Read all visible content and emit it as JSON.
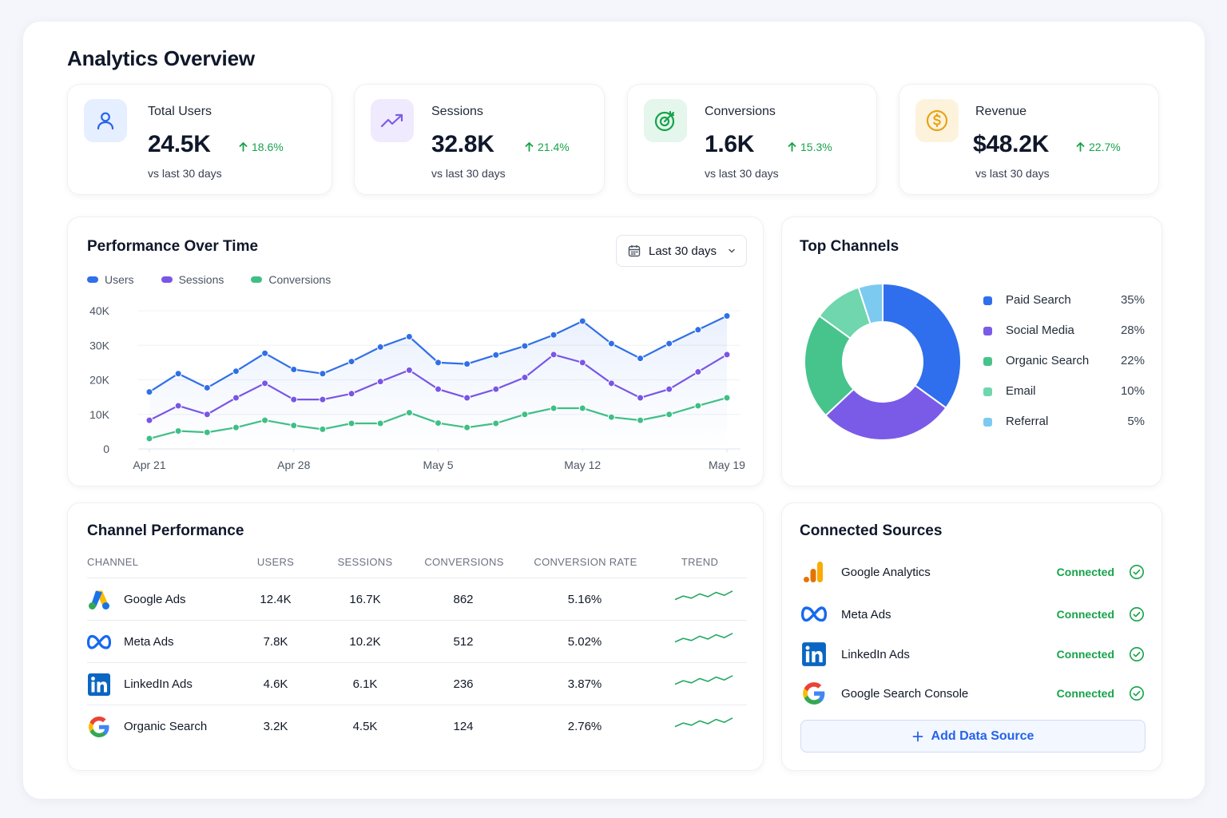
{
  "page": {
    "title": "Analytics Overview"
  },
  "kpis": [
    {
      "label": "Total Users",
      "value": "24.5K",
      "delta": "18.6%",
      "sub": "vs last 30 days",
      "icon": "user-icon",
      "color": "#2563eb",
      "bg": "#e6efff"
    },
    {
      "label": "Sessions",
      "value": "32.8K",
      "delta": "21.4%",
      "sub": "vs last 30 days",
      "icon": "trending-up-icon",
      "color": "#7c5ce6",
      "bg": "#efeafd"
    },
    {
      "label": "Conversions",
      "value": "1.6K",
      "delta": "15.3%",
      "sub": "vs last 30 days",
      "icon": "target-icon",
      "color": "#16a34a",
      "bg": "#e5f6ec"
    },
    {
      "label": "Revenue",
      "value": "$48.2K",
      "delta": "22.7%",
      "sub": "vs last 30 days",
      "icon": "dollar-coin-icon",
      "color": "#e8a317",
      "bg": "#fdf3dd"
    }
  ],
  "performance": {
    "title": "Performance Over Time",
    "date_range": "Last 30 days",
    "legend": [
      "Users",
      "Sessions",
      "Conversions"
    ]
  },
  "chart_data": [
    {
      "type": "line",
      "title": "Performance Over Time",
      "ylim": [
        0,
        40000
      ],
      "y_ticks": [
        "40K",
        "30K",
        "20K",
        "10K",
        "0"
      ],
      "y_tick_values": [
        40000,
        30000,
        20000,
        10000,
        0
      ],
      "x_tick_labels": [
        "Apr 21",
        "Apr 28",
        "May 5",
        "May 12",
        "May 19"
      ],
      "x_tick_index": [
        0,
        5,
        10,
        15,
        20
      ],
      "grid": true,
      "legend_position": "top-left",
      "series": [
        {
          "name": "Users",
          "color": "#2f6fe8",
          "values": [
            16500,
            21800,
            17700,
            22500,
            27700,
            23000,
            21800,
            25300,
            29500,
            32500,
            25000,
            24600,
            27200,
            29800,
            33000,
            37000,
            30500,
            26200,
            30500,
            34500,
            38500
          ]
        },
        {
          "name": "Sessions",
          "color": "#7a55e6",
          "values": [
            8300,
            12500,
            10000,
            14800,
            19000,
            14300,
            14300,
            16000,
            19500,
            22800,
            17300,
            14800,
            17300,
            20700,
            27300,
            25000,
            19000,
            14800,
            17300,
            22300,
            27300
          ]
        },
        {
          "name": "Conversions",
          "color": "#3fbf86",
          "values": [
            3000,
            5200,
            4800,
            6200,
            8300,
            6800,
            5700,
            7400,
            7400,
            10500,
            7500,
            6200,
            7400,
            10000,
            11800,
            11800,
            9200,
            8300,
            10000,
            12500,
            14800
          ]
        }
      ]
    },
    {
      "type": "pie",
      "title": "Top Channels",
      "categories": [
        "Paid Search",
        "Social Media",
        "Organic Search",
        "Email",
        "Referral"
      ],
      "values": [
        35,
        28,
        22,
        10,
        5
      ],
      "colors": [
        "#2f6fed",
        "#7a5be8",
        "#46c48c",
        "#6fd6ad",
        "#7ccaf0"
      ]
    }
  ],
  "channels": {
    "title": "Top Channels",
    "items": [
      {
        "name": "Paid Search",
        "pct": "35%"
      },
      {
        "name": "Social Media",
        "pct": "28%"
      },
      {
        "name": "Organic Search",
        "pct": "22%"
      },
      {
        "name": "Email",
        "pct": "10%"
      },
      {
        "name": "Referral",
        "pct": "5%"
      }
    ]
  },
  "table": {
    "title": "Channel Performance",
    "headers": [
      "CHANNEL",
      "USERS",
      "SESSIONS",
      "CONVERSIONS",
      "CONVERSION RATE",
      "TREND"
    ],
    "rows": [
      {
        "channel": "Google Ads",
        "logo": "google-ads-logo-icon",
        "users": "12.4K",
        "sessions": "16.7K",
        "conversions": "862",
        "rate": "5.16%",
        "trend": [
          0.3,
          0.55,
          0.4,
          0.7,
          0.5,
          0.8,
          0.6,
          0.9
        ]
      },
      {
        "channel": "Meta Ads",
        "logo": "meta-logo-icon",
        "users": "7.8K",
        "sessions": "10.2K",
        "conversions": "512",
        "rate": "5.02%",
        "trend": [
          0.3,
          0.55,
          0.4,
          0.7,
          0.5,
          0.8,
          0.6,
          0.9
        ]
      },
      {
        "channel": "LinkedIn Ads",
        "logo": "linkedin-logo-icon",
        "users": "4.6K",
        "sessions": "6.1K",
        "conversions": "236",
        "rate": "3.87%",
        "trend": [
          0.3,
          0.55,
          0.4,
          0.7,
          0.5,
          0.8,
          0.6,
          0.9
        ]
      },
      {
        "channel": "Organic Search",
        "logo": "google-g-logo-icon",
        "users": "3.2K",
        "sessions": "4.5K",
        "conversions": "124",
        "rate": "2.76%",
        "trend": [
          0.3,
          0.55,
          0.4,
          0.7,
          0.5,
          0.8,
          0.6,
          0.9
        ]
      }
    ]
  },
  "sources": {
    "title": "Connected Sources",
    "items": [
      {
        "name": "Google Analytics",
        "status": "Connected",
        "logo": "google-analytics-logo-icon"
      },
      {
        "name": "Meta Ads",
        "status": "Connected",
        "logo": "meta-logo-icon"
      },
      {
        "name": "LinkedIn Ads",
        "status": "Connected",
        "logo": "linkedin-logo-icon"
      },
      {
        "name": "Google Search Console",
        "status": "Connected",
        "logo": "google-g-logo-icon"
      }
    ],
    "add_label": "Add Data Source"
  }
}
